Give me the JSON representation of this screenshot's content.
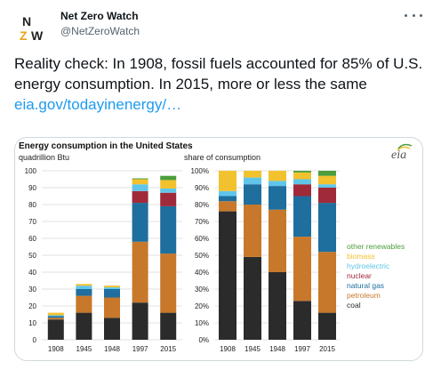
{
  "author": {
    "name": "Net Zero Watch",
    "handle": "@NetZeroWatch",
    "logo_letters": [
      "N",
      "Z",
      "W"
    ]
  },
  "tweet": {
    "text": "Reality check: In 1908, fossil fuels accounted for 85% of U.S. energy consumption. In 2015, more or less the same",
    "link": "eia.gov/todayinenergy/…"
  },
  "colors": {
    "coal": "#2b2b2b",
    "petroleum": "#c8782a",
    "natural_gas": "#1e6e9e",
    "nuclear": "#a02a3a",
    "hydroelectric": "#5fc6ea",
    "biomass": "#f2c12e",
    "other_renewables": "#4c9e3c",
    "link": "#1d9bf0"
  },
  "chart_data": [
    {
      "type": "bar",
      "stacked": true,
      "title": "Energy consumption in the United States",
      "unit_label": "quadrillion Btu",
      "categories": [
        "1908",
        "1945",
        "1948",
        "1997",
        "2015"
      ],
      "ylim": [
        0,
        100
      ],
      "yticks": [
        "0",
        "10",
        "20",
        "30",
        "40",
        "50",
        "60",
        "70",
        "80",
        "90",
        "100"
      ],
      "grid": true,
      "series": [
        {
          "key": "coal",
          "values": [
            12,
            16,
            13,
            22,
            16
          ]
        },
        {
          "key": "petroleum",
          "values": [
            1,
            10,
            12,
            36,
            35
          ]
        },
        {
          "key": "natural_gas",
          "values": [
            1,
            4,
            5,
            23,
            28
          ]
        },
        {
          "key": "nuclear",
          "values": [
            0,
            0,
            0,
            7,
            8
          ]
        },
        {
          "key": "hydroelectric",
          "values": [
            0.5,
            2,
            1,
            4,
            2.5
          ]
        },
        {
          "key": "biomass",
          "values": [
            1.5,
            1,
            1,
            3,
            5
          ]
        },
        {
          "key": "other_renewables",
          "values": [
            0,
            0,
            0,
            0.5,
            2.5
          ]
        }
      ]
    },
    {
      "type": "bar",
      "stacked": true,
      "unit_label": "share of consumption",
      "categories": [
        "1908",
        "1945",
        "1948",
        "1997",
        "2015"
      ],
      "ylim": [
        0,
        100
      ],
      "yticks": [
        "0%",
        "10%",
        "20%",
        "30%",
        "40%",
        "50%",
        "60%",
        "70%",
        "80%",
        "90%",
        "100%"
      ],
      "grid": true,
      "legend_position": "right",
      "legend": [
        {
          "key": "other_renewables",
          "label": "other renewables"
        },
        {
          "key": "biomass",
          "label": "biomass"
        },
        {
          "key": "hydroelectric",
          "label": "hydroelectric"
        },
        {
          "key": "nuclear",
          "label": "nuclear"
        },
        {
          "key": "natural_gas",
          "label": "natural gas"
        },
        {
          "key": "petroleum",
          "label": "petroleum"
        },
        {
          "key": "coal",
          "label": "coal"
        }
      ],
      "series": [
        {
          "key": "coal",
          "values": [
            76,
            49,
            40,
            23,
            16
          ]
        },
        {
          "key": "petroleum",
          "values": [
            6,
            31,
            37,
            38,
            36
          ]
        },
        {
          "key": "natural_gas",
          "values": [
            3,
            12,
            14,
            24,
            29
          ]
        },
        {
          "key": "nuclear",
          "values": [
            0,
            0,
            0,
            7,
            9
          ]
        },
        {
          "key": "hydroelectric",
          "values": [
            3,
            4,
            3,
            3,
            2
          ]
        },
        {
          "key": "biomass",
          "values": [
            12,
            4,
            6,
            4,
            5
          ]
        },
        {
          "key": "other_renewables",
          "values": [
            0,
            0,
            0,
            1,
            3
          ]
        }
      ]
    }
  ],
  "source_logo": "eia"
}
